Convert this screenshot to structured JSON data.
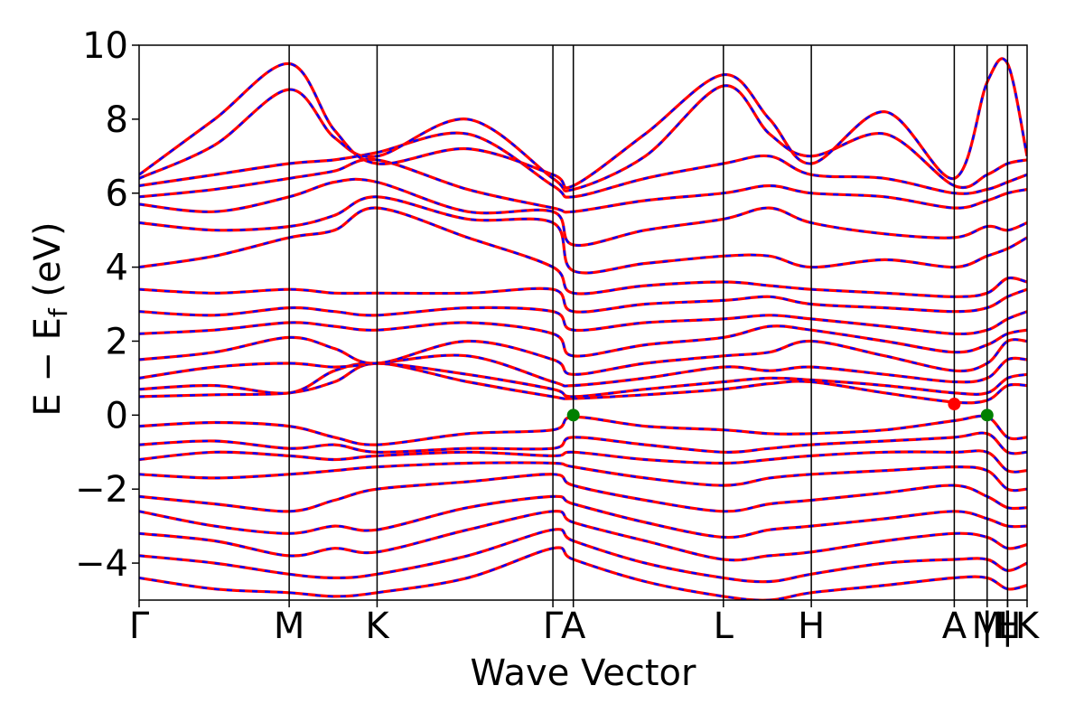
{
  "chart_data": {
    "type": "line",
    "xlabel": "Wave Vector",
    "ylabel": {
      "pre": "E − E",
      "sub": "f",
      "post": " (eV)"
    },
    "ylim": [
      -5,
      10
    ],
    "xlim": [
      0,
      1
    ],
    "grid": false,
    "yticks": [
      -4,
      -2,
      0,
      2,
      4,
      6,
      8,
      10
    ],
    "ytick_labels": [
      "−4",
      "−2",
      "0",
      "2",
      "4",
      "6",
      "8",
      "10"
    ],
    "kpoints": [
      {
        "label": "Γ",
        "x": 0.0
      },
      {
        "label": "M",
        "x": 0.169
      },
      {
        "label": "K",
        "x": 0.268
      },
      {
        "label": "Γ",
        "x": 0.466
      },
      {
        "label": "A",
        "x": 0.489
      },
      {
        "label": "L",
        "x": 0.658
      },
      {
        "label": "H",
        "x": 0.757
      },
      {
        "label": "A",
        "x": 0.918
      },
      {
        "label": "M",
        "x": 0.955
      },
      {
        "label": "|",
        "x": 0.955
      },
      {
        "label": "L",
        "x": 0.978
      },
      {
        "label": "|",
        "x": 0.978
      },
      {
        "label": "H",
        "x": 0.978
      },
      {
        "label": "K",
        "x": 1.0
      }
    ],
    "series": [
      {
        "color": "#ff0000",
        "style": "solid",
        "values_note_for_bands": "spin-up bands"
      },
      {
        "color": "#0000ff",
        "style": "dashed",
        "values_note_for_bands": "spin-down bands"
      }
    ],
    "markers": [
      {
        "x": 0.489,
        "y": 0.0,
        "color": "#008000"
      },
      {
        "x": 0.955,
        "y": 0.0,
        "color": "#008000"
      },
      {
        "x": 0.918,
        "y": 0.3,
        "color": "#ff0000"
      }
    ],
    "bands": {
      "x": [
        0.0,
        0.085,
        0.169,
        0.22,
        0.268,
        0.37,
        0.466,
        0.489,
        0.57,
        0.658,
        0.71,
        0.757,
        0.84,
        0.918,
        0.955,
        0.978,
        1.0
      ],
      "conduction": [
        [
          0.5,
          0.55,
          0.6,
          0.9,
          1.4,
          0.9,
          0.5,
          0.45,
          0.55,
          0.7,
          0.85,
          0.9,
          0.6,
          0.35,
          0.4,
          0.8,
          0.8
        ],
        [
          0.7,
          0.8,
          0.6,
          1.2,
          1.4,
          1.1,
          0.7,
          0.5,
          0.7,
          0.9,
          1.0,
          0.95,
          0.8,
          0.6,
          0.6,
          1.0,
          1.1
        ],
        [
          1.0,
          1.3,
          1.4,
          1.3,
          1.4,
          1.6,
          0.9,
          0.8,
          1.0,
          1.3,
          1.2,
          1.3,
          1.1,
          0.9,
          1.0,
          1.5,
          1.5
        ],
        [
          1.5,
          1.7,
          2.1,
          1.8,
          1.4,
          2.0,
          1.5,
          1.1,
          1.4,
          1.6,
          1.7,
          2.0,
          1.6,
          1.2,
          1.4,
          2.0,
          2.0
        ],
        [
          2.2,
          2.3,
          2.5,
          2.4,
          2.3,
          2.5,
          2.2,
          1.6,
          1.9,
          2.1,
          2.4,
          2.3,
          2.0,
          1.7,
          1.9,
          2.2,
          2.3
        ],
        [
          2.8,
          2.7,
          2.9,
          2.8,
          2.7,
          2.9,
          2.8,
          2.3,
          2.5,
          2.6,
          2.7,
          2.6,
          2.4,
          2.2,
          2.3,
          2.6,
          2.8
        ],
        [
          3.4,
          3.3,
          3.4,
          3.3,
          3.3,
          3.3,
          3.4,
          2.8,
          3.0,
          3.1,
          3.2,
          3.0,
          2.9,
          2.8,
          2.9,
          3.2,
          3.4
        ],
        [
          4.0,
          4.3,
          4.8,
          5.0,
          5.6,
          4.8,
          4.0,
          3.3,
          3.5,
          3.6,
          3.5,
          3.4,
          3.3,
          3.2,
          3.3,
          3.7,
          3.6
        ],
        [
          5.2,
          5.0,
          5.1,
          5.4,
          5.9,
          5.3,
          5.2,
          3.9,
          4.1,
          4.3,
          4.3,
          4.0,
          4.2,
          4.0,
          4.3,
          4.5,
          4.8
        ],
        [
          5.7,
          5.5,
          5.9,
          6.3,
          6.3,
          5.5,
          5.5,
          4.6,
          5.0,
          5.3,
          5.6,
          5.2,
          4.9,
          4.8,
          5.1,
          5.0,
          5.2
        ],
        [
          5.9,
          6.1,
          6.4,
          6.6,
          6.9,
          6.1,
          5.6,
          5.5,
          5.8,
          6.0,
          6.2,
          6.0,
          5.9,
          5.6,
          5.8,
          6.0,
          6.1
        ],
        [
          6.2,
          6.5,
          6.8,
          6.9,
          7.1,
          7.6,
          6.2,
          5.9,
          6.4,
          6.8,
          7.0,
          6.5,
          6.4,
          6.0,
          6.1,
          6.3,
          6.5
        ],
        [
          6.4,
          7.3,
          8.8,
          7.5,
          7.0,
          8.0,
          6.4,
          6.1,
          7.0,
          8.9,
          7.6,
          7.0,
          7.6,
          6.2,
          6.5,
          6.8,
          6.9
        ],
        [
          6.5,
          8.0,
          9.5,
          7.7,
          6.8,
          7.2,
          6.5,
          6.2,
          7.6,
          9.2,
          8.0,
          6.8,
          8.2,
          6.4,
          9.0,
          9.5,
          7.0
        ]
      ],
      "valence": [
        [
          -0.3,
          -0.2,
          -0.3,
          -0.6,
          -0.8,
          -0.5,
          -0.4,
          -0.05,
          -0.3,
          -0.4,
          -0.5,
          -0.5,
          -0.4,
          -0.15,
          -0.05,
          -0.6,
          -0.6
        ],
        [
          -0.8,
          -0.7,
          -0.9,
          -0.8,
          -1.0,
          -0.9,
          -0.9,
          -0.6,
          -0.8,
          -1.0,
          -0.9,
          -0.8,
          -0.7,
          -0.6,
          -0.5,
          -1.0,
          -1.0
        ],
        [
          -1.2,
          -1.0,
          -1.1,
          -1.2,
          -1.1,
          -1.0,
          -1.1,
          -1.0,
          -1.2,
          -1.3,
          -1.2,
          -1.1,
          -1.0,
          -1.0,
          -1.0,
          -1.5,
          -1.5
        ],
        [
          -1.6,
          -1.7,
          -1.6,
          -1.5,
          -1.4,
          -1.3,
          -1.3,
          -1.4,
          -1.7,
          -1.9,
          -1.7,
          -1.6,
          -1.5,
          -1.4,
          -1.5,
          -2.0,
          -2.0
        ],
        [
          -2.2,
          -2.4,
          -2.6,
          -2.3,
          -2.0,
          -1.8,
          -1.6,
          -1.9,
          -2.3,
          -2.6,
          -2.4,
          -2.3,
          -2.1,
          -1.9,
          -2.2,
          -2.5,
          -2.5
        ],
        [
          -2.6,
          -3.0,
          -3.2,
          -3.0,
          -3.1,
          -2.5,
          -2.2,
          -2.4,
          -2.9,
          -3.3,
          -3.1,
          -3.0,
          -2.8,
          -2.6,
          -2.8,
          -3.0,
          -3.0
        ],
        [
          -3.2,
          -3.4,
          -3.8,
          -3.6,
          -3.7,
          -3.1,
          -2.6,
          -2.9,
          -3.4,
          -3.9,
          -3.8,
          -3.7,
          -3.4,
          -3.2,
          -3.3,
          -3.6,
          -3.5
        ],
        [
          -3.8,
          -4.0,
          -4.3,
          -4.4,
          -4.3,
          -3.8,
          -3.1,
          -3.4,
          -4.0,
          -4.4,
          -4.5,
          -4.3,
          -4.0,
          -3.9,
          -3.9,
          -4.2,
          -4.0
        ],
        [
          -4.4,
          -4.7,
          -4.8,
          -4.9,
          -4.8,
          -4.4,
          -3.6,
          -3.9,
          -4.5,
          -4.9,
          -5.0,
          -4.8,
          -4.6,
          -4.4,
          -4.4,
          -4.7,
          -4.6
        ]
      ]
    }
  }
}
